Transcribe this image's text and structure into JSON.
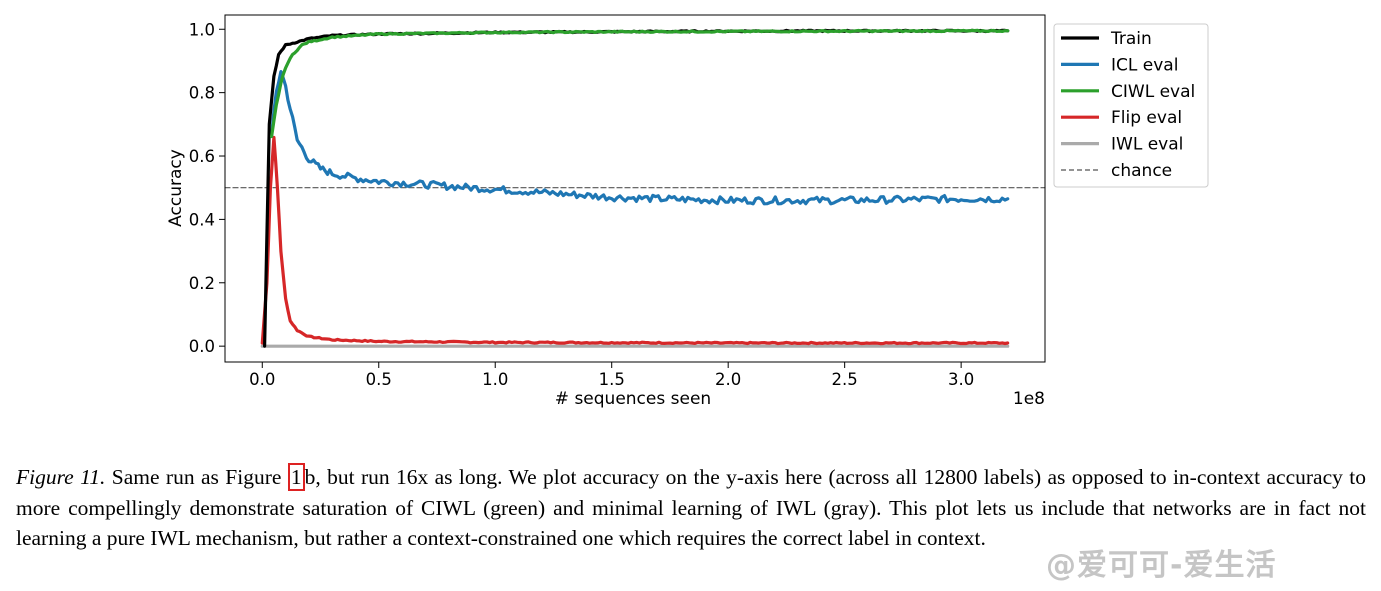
{
  "chart_data": {
    "type": "line",
    "xlabel": "# sequences seen",
    "ylabel": "Accuracy",
    "x_offset_label": "1e8",
    "xlim": [
      -0.16,
      3.36
    ],
    "ylim": [
      -0.05,
      1.045
    ],
    "x_ticks": [
      0.0,
      0.5,
      1.0,
      1.5,
      2.0,
      2.5,
      3.0
    ],
    "x_tick_labels": [
      "0.0",
      "0.5",
      "1.0",
      "1.5",
      "2.0",
      "2.5",
      "3.0"
    ],
    "y_ticks": [
      0.0,
      0.2,
      0.4,
      0.6,
      0.8,
      1.0
    ],
    "y_tick_labels": [
      "0.0",
      "0.2",
      "0.4",
      "0.6",
      "0.8",
      "1.0"
    ],
    "grid": false,
    "legend_position": "outside-right-top",
    "chance_level": 0.5,
    "series": [
      {
        "name": "Train",
        "color": "#000000",
        "style": "solid",
        "points": [
          [
            0.01,
            0.0
          ],
          [
            0.03,
            0.7
          ],
          [
            0.05,
            0.85
          ],
          [
            0.07,
            0.92
          ],
          [
            0.1,
            0.95
          ],
          [
            0.15,
            0.96
          ],
          [
            0.2,
            0.97
          ],
          [
            0.3,
            0.98
          ],
          [
            0.5,
            0.985
          ],
          [
            1.0,
            0.99
          ],
          [
            1.5,
            0.992
          ],
          [
            2.0,
            0.994
          ],
          [
            2.5,
            0.995
          ],
          [
            3.2,
            0.995
          ]
        ]
      },
      {
        "name": "ICL eval",
        "color": "#1f77b4",
        "style": "solid",
        "points": [
          [
            0.04,
            0.66
          ],
          [
            0.06,
            0.8
          ],
          [
            0.08,
            0.87
          ],
          [
            0.1,
            0.82
          ],
          [
            0.12,
            0.75
          ],
          [
            0.15,
            0.65
          ],
          [
            0.2,
            0.59
          ],
          [
            0.25,
            0.56
          ],
          [
            0.3,
            0.545
          ],
          [
            0.4,
            0.53
          ],
          [
            0.5,
            0.52
          ],
          [
            0.7,
            0.51
          ],
          [
            1.0,
            0.495
          ],
          [
            1.2,
            0.485
          ],
          [
            1.5,
            0.47
          ],
          [
            1.7,
            0.465
          ],
          [
            2.0,
            0.46
          ],
          [
            2.5,
            0.46
          ],
          [
            3.0,
            0.465
          ],
          [
            3.2,
            0.465
          ]
        ]
      },
      {
        "name": "CIWL eval",
        "color": "#2ca02c",
        "style": "solid",
        "points": [
          [
            0.04,
            0.66
          ],
          [
            0.06,
            0.76
          ],
          [
            0.08,
            0.83
          ],
          [
            0.1,
            0.88
          ],
          [
            0.13,
            0.92
          ],
          [
            0.17,
            0.95
          ],
          [
            0.2,
            0.96
          ],
          [
            0.3,
            0.975
          ],
          [
            0.5,
            0.985
          ],
          [
            1.0,
            0.99
          ],
          [
            1.5,
            0.992
          ],
          [
            2.0,
            0.993
          ],
          [
            2.5,
            0.994
          ],
          [
            3.2,
            0.995
          ]
        ]
      },
      {
        "name": "Flip eval",
        "color": "#d62728",
        "style": "solid",
        "points": [
          [
            0.0,
            0.01
          ],
          [
            0.02,
            0.2
          ],
          [
            0.035,
            0.5
          ],
          [
            0.05,
            0.66
          ],
          [
            0.065,
            0.5
          ],
          [
            0.08,
            0.3
          ],
          [
            0.1,
            0.15
          ],
          [
            0.12,
            0.08
          ],
          [
            0.15,
            0.05
          ],
          [
            0.2,
            0.03
          ],
          [
            0.3,
            0.02
          ],
          [
            0.5,
            0.015
          ],
          [
            1.0,
            0.012
          ],
          [
            2.0,
            0.01
          ],
          [
            3.2,
            0.01
          ]
        ]
      },
      {
        "name": "IWL eval",
        "color": "#aaaaaa",
        "style": "solid",
        "points": [
          [
            0.0,
            0.0
          ],
          [
            3.2,
            0.0
          ]
        ]
      },
      {
        "name": "chance",
        "color": "#555555",
        "style": "dashed",
        "points": [
          [
            -0.16,
            0.5
          ],
          [
            3.36,
            0.5
          ]
        ]
      }
    ]
  },
  "caption": {
    "lead": "Figure 11.",
    "part1": " Same run as Figure ",
    "ref": "1",
    "part2": "b, but run 16x as long.  We plot accuracy on the y-axis here (across all 12800 labels) as opposed to in-context accuracy to more compellingly demonstrate saturation of CIWL (green) and minimal learning of IWL (gray). This plot lets us include that networks are in fact not learning a pure IWL mechanism, but rather a context-constrained one which requires the correct label in context."
  },
  "watermark": "@爱可可-爱生活"
}
